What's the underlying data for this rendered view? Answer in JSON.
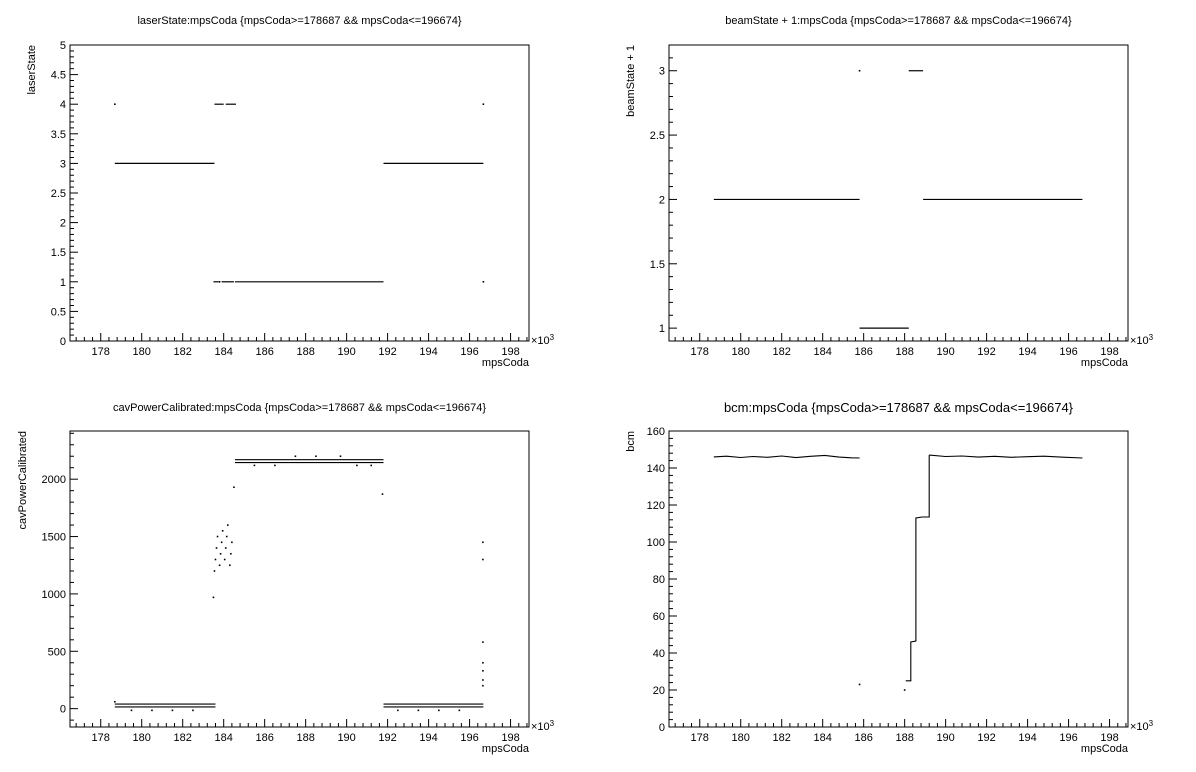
{
  "colors": {
    "background": "#ffffff",
    "axis": "#000000",
    "marker": "#000000"
  },
  "chart_data": [
    {
      "type": "scatter",
      "title": "laserState:mpsCoda {mpsCoda>=178687 && mpsCoda<=196674}",
      "xlabel": "mpsCoda",
      "ylabel": "laserState",
      "x_exponent_label": "×10",
      "x_exponent": "3",
      "xlim": [
        176500,
        198900
      ],
      "ylim": [
        0,
        5
      ],
      "x_ticks": [
        178000,
        180000,
        182000,
        184000,
        186000,
        188000,
        190000,
        192000,
        194000,
        196000,
        198000
      ],
      "x_tick_labels": [
        "178",
        "180",
        "182",
        "184",
        "186",
        "188",
        "190",
        "192",
        "194",
        "196",
        "198"
      ],
      "y_ticks": [
        0,
        0.5,
        1,
        1.5,
        2,
        2.5,
        3,
        3.5,
        4,
        4.5,
        5
      ],
      "y_tick_labels": [
        "0",
        "0.5",
        "1",
        "1.5",
        "2",
        "2.5",
        "3",
        "3.5",
        "4",
        "4.5",
        "5"
      ],
      "grid": false,
      "segments": [
        {
          "x": [
            178687,
            183550
          ],
          "y": 3
        },
        {
          "x": [
            183550,
            184000
          ],
          "y": 4
        },
        {
          "x": [
            184100,
            184600
          ],
          "y": 4
        },
        {
          "x": [
            183500,
            183750
          ],
          "y": 1
        },
        {
          "x": [
            183900,
            184500
          ],
          "y": 1
        },
        {
          "x": [
            184550,
            191800
          ],
          "y": 1
        },
        {
          "x": [
            191800,
            196674
          ],
          "y": 3
        }
      ],
      "points": [
        {
          "x": 178687,
          "y": 4
        },
        {
          "x": 196674,
          "y": 4
        },
        {
          "x": 196674,
          "y": 1
        },
        {
          "x": 183800,
          "y": 1
        }
      ]
    },
    {
      "type": "scatter",
      "title": "beamState + 1:mpsCoda {mpsCoda>=178687 && mpsCoda<=196674}",
      "xlabel": "mpsCoda",
      "ylabel": "beamState + 1",
      "x_exponent_label": "×10",
      "x_exponent": "3",
      "xlim": [
        176500,
        198900
      ],
      "ylim": [
        0.9,
        3.2
      ],
      "x_ticks": [
        178000,
        180000,
        182000,
        184000,
        186000,
        188000,
        190000,
        192000,
        194000,
        196000,
        198000
      ],
      "x_tick_labels": [
        "178",
        "180",
        "182",
        "184",
        "186",
        "188",
        "190",
        "192",
        "194",
        "196",
        "198"
      ],
      "y_ticks": [
        1,
        1.5,
        2,
        2.5,
        3
      ],
      "y_tick_labels": [
        "1",
        "1.5",
        "2",
        "2.5",
        "3"
      ],
      "grid": false,
      "segments": [
        {
          "x": [
            178687,
            185800
          ],
          "y": 2
        },
        {
          "x": [
            185800,
            188200
          ],
          "y": 1
        },
        {
          "x": [
            188200,
            188900
          ],
          "y": 3
        },
        {
          "x": [
            188900,
            196674
          ],
          "y": 2
        }
      ],
      "points": [
        {
          "x": 185800,
          "y": 3
        }
      ]
    },
    {
      "type": "scatter",
      "title": "cavPowerCalibrated:mpsCoda {mpsCoda>=178687 && mpsCoda<=196674}",
      "xlabel": "mpsCoda",
      "ylabel": "cavPowerCalibrated",
      "x_exponent_label": "×10",
      "x_exponent": "3",
      "xlim": [
        176500,
        198900
      ],
      "ylim": [
        -160,
        2420
      ],
      "x_ticks": [
        178000,
        180000,
        182000,
        184000,
        186000,
        188000,
        190000,
        192000,
        194000,
        196000,
        198000
      ],
      "x_tick_labels": [
        "178",
        "180",
        "182",
        "184",
        "186",
        "188",
        "190",
        "192",
        "194",
        "196",
        "198"
      ],
      "y_ticks": [
        0,
        500,
        1000,
        1500,
        2000
      ],
      "y_tick_labels": [
        "0",
        "500",
        "1000",
        "1500",
        "2000"
      ],
      "grid": false,
      "segments": [
        {
          "x": [
            178687,
            183600
          ],
          "y": 40
        },
        {
          "x": [
            178687,
            183600
          ],
          "y": 15
        },
        {
          "x": [
            184550,
            191800
          ],
          "y": 2170
        },
        {
          "x": [
            184550,
            191800
          ],
          "y": 2145
        },
        {
          "x": [
            191800,
            196674
          ],
          "y": 40
        },
        {
          "x": [
            191800,
            196674
          ],
          "y": 15
        }
      ],
      "points": [
        {
          "x": 178687,
          "y": 60
        },
        {
          "x": 179500,
          "y": -15
        },
        {
          "x": 180500,
          "y": -15
        },
        {
          "x": 181500,
          "y": -15
        },
        {
          "x": 182500,
          "y": -15
        },
        {
          "x": 183500,
          "y": 970
        },
        {
          "x": 183550,
          "y": 1200
        },
        {
          "x": 183600,
          "y": 1300
        },
        {
          "x": 183650,
          "y": 1400
        },
        {
          "x": 183700,
          "y": 1500
        },
        {
          "x": 183800,
          "y": 1250
        },
        {
          "x": 183850,
          "y": 1350
        },
        {
          "x": 183900,
          "y": 1450
        },
        {
          "x": 183950,
          "y": 1550
        },
        {
          "x": 184050,
          "y": 1300
        },
        {
          "x": 184100,
          "y": 1400
        },
        {
          "x": 184150,
          "y": 1500
        },
        {
          "x": 184200,
          "y": 1600
        },
        {
          "x": 184300,
          "y": 1250
        },
        {
          "x": 184350,
          "y": 1350
        },
        {
          "x": 184400,
          "y": 1450
        },
        {
          "x": 184500,
          "y": 1930
        },
        {
          "x": 185500,
          "y": 2120
        },
        {
          "x": 186500,
          "y": 2120
        },
        {
          "x": 187500,
          "y": 2200
        },
        {
          "x": 188500,
          "y": 2200
        },
        {
          "x": 189700,
          "y": 2200
        },
        {
          "x": 190500,
          "y": 2120
        },
        {
          "x": 191200,
          "y": 2120
        },
        {
          "x": 191750,
          "y": 1870
        },
        {
          "x": 192500,
          "y": -15
        },
        {
          "x": 193500,
          "y": -15
        },
        {
          "x": 194500,
          "y": -15
        },
        {
          "x": 195500,
          "y": -15
        },
        {
          "x": 196650,
          "y": 1300
        },
        {
          "x": 196650,
          "y": 1450
        },
        {
          "x": 196650,
          "y": 580
        },
        {
          "x": 196650,
          "y": 400
        },
        {
          "x": 196650,
          "y": 330
        },
        {
          "x": 196650,
          "y": 250
        },
        {
          "x": 196650,
          "y": 200
        }
      ]
    },
    {
      "type": "scatter",
      "title": "bcm:mpsCoda {mpsCoda>=178687 && mpsCoda<=196674}",
      "xlabel": "mpsCoda",
      "ylabel": "bcm",
      "x_exponent_label": "×10",
      "x_exponent": "3",
      "xlim": [
        176500,
        198900
      ],
      "ylim": [
        0,
        160
      ],
      "x_ticks": [
        178000,
        180000,
        182000,
        184000,
        186000,
        188000,
        190000,
        192000,
        194000,
        196000,
        198000
      ],
      "x_tick_labels": [
        "178",
        "180",
        "182",
        "184",
        "186",
        "188",
        "190",
        "192",
        "194",
        "196",
        "198"
      ],
      "y_ticks": [
        0,
        20,
        40,
        60,
        80,
        100,
        120,
        140,
        160
      ],
      "y_tick_labels": [
        "0",
        "20",
        "40",
        "60",
        "80",
        "100",
        "120",
        "140",
        "160"
      ],
      "grid": false,
      "polylines": [
        {
          "x": [
            178687,
            179300,
            180000,
            180600,
            181300,
            182000,
            182700,
            183400,
            184100,
            184800,
            185400,
            185800
          ],
          "y": [
            146,
            146.4,
            145.7,
            146.2,
            145.8,
            146.5,
            145.6,
            146.3,
            146.8,
            145.9,
            145.5,
            145.4
          ]
        },
        {
          "x": [
            188050,
            188300,
            188300,
            188550,
            188550,
            188850,
            188850,
            189200,
            189200
          ],
          "y": [
            25,
            25,
            46,
            46.5,
            113,
            113.5,
            113.5,
            113.5,
            147
          ]
        },
        {
          "x": [
            189200,
            190000,
            190800,
            191600,
            192400,
            193200,
            194000,
            194800,
            195600,
            196674
          ],
          "y": [
            147,
            146.2,
            146.5,
            145.9,
            146.3,
            145.8,
            146.1,
            146.4,
            145.9,
            145.4
          ]
        }
      ],
      "points": [
        {
          "x": 185800,
          "y": 23
        },
        {
          "x": 188000,
          "y": 20
        }
      ]
    }
  ]
}
